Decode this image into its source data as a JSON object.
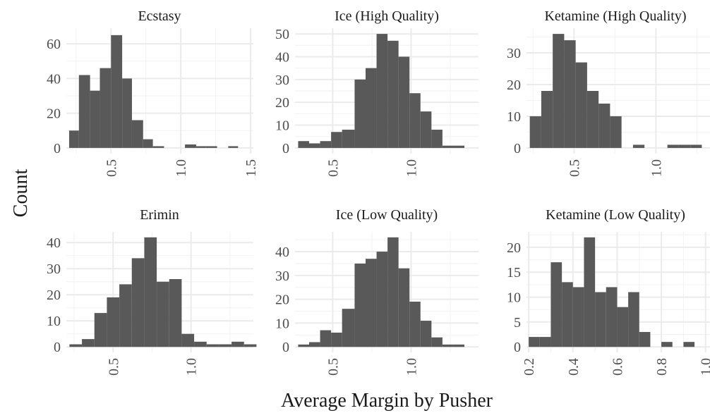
{
  "figure": {
    "xlabel": "Average Margin by Pusher",
    "ylabel": "Count"
  },
  "colors": {
    "bar": "#595959",
    "grid_major": "#ebebeb",
    "grid_minor": "#f2f2f2",
    "background": "#ffffff"
  },
  "chart_data": [
    {
      "type": "bar",
      "title": "Ecstasy",
      "xlim": [
        0.18,
        1.52
      ],
      "ylim": [
        -3.3,
        69
      ],
      "xticks": [
        0.5,
        1.0,
        1.5
      ],
      "xtick_labels": [
        "0.5",
        "1.0",
        "1.5"
      ],
      "yticks": [
        0,
        20,
        40,
        60
      ],
      "ytick_labels": [
        "0",
        "20",
        "40",
        "60"
      ],
      "bins": [
        {
          "x0": 0.2,
          "x1": 0.27,
          "count": 10
        },
        {
          "x0": 0.27,
          "x1": 0.35,
          "count": 42
        },
        {
          "x0": 0.35,
          "x1": 0.42,
          "count": 33
        },
        {
          "x0": 0.42,
          "x1": 0.5,
          "count": 46
        },
        {
          "x0": 0.5,
          "x1": 0.58,
          "count": 65
        },
        {
          "x0": 0.58,
          "x1": 0.65,
          "count": 40
        },
        {
          "x0": 0.65,
          "x1": 0.73,
          "count": 16
        },
        {
          "x0": 0.73,
          "x1": 0.8,
          "count": 5
        },
        {
          "x0": 0.8,
          "x1": 0.88,
          "count": 1
        },
        {
          "x0": 1.03,
          "x1": 1.11,
          "count": 2
        },
        {
          "x0": 1.11,
          "x1": 1.18,
          "count": 1
        },
        {
          "x0": 1.18,
          "x1": 1.26,
          "count": 1
        },
        {
          "x0": 1.34,
          "x1": 1.41,
          "count": 1
        }
      ]
    },
    {
      "type": "bar",
      "title": "Ice (High Quality)",
      "xlim": [
        0.26,
        1.43
      ],
      "ylim": [
        -2.5,
        52.5
      ],
      "xticks": [
        0.5,
        1.0
      ],
      "xtick_labels": [
        "0.5",
        "1.0"
      ],
      "yticks": [
        0,
        10,
        20,
        30,
        40,
        50
      ],
      "ytick_labels": [
        "0",
        "10",
        "20",
        "30",
        "40",
        "50"
      ],
      "bins": [
        {
          "x0": 0.28,
          "x1": 0.35,
          "count": 3
        },
        {
          "x0": 0.35,
          "x1": 0.42,
          "count": 2
        },
        {
          "x0": 0.42,
          "x1": 0.49,
          "count": 3
        },
        {
          "x0": 0.49,
          "x1": 0.56,
          "count": 7
        },
        {
          "x0": 0.56,
          "x1": 0.64,
          "count": 8
        },
        {
          "x0": 0.64,
          "x1": 0.71,
          "count": 30
        },
        {
          "x0": 0.71,
          "x1": 0.78,
          "count": 35
        },
        {
          "x0": 0.78,
          "x1": 0.85,
          "count": 50
        },
        {
          "x0": 0.85,
          "x1": 0.92,
          "count": 47
        },
        {
          "x0": 0.92,
          "x1": 0.99,
          "count": 40
        },
        {
          "x0": 0.99,
          "x1": 1.06,
          "count": 24
        },
        {
          "x0": 1.06,
          "x1": 1.13,
          "count": 16
        },
        {
          "x0": 1.13,
          "x1": 1.2,
          "count": 8
        },
        {
          "x0": 1.2,
          "x1": 1.27,
          "count": 1
        },
        {
          "x0": 1.27,
          "x1": 1.34,
          "count": 1
        }
      ]
    },
    {
      "type": "bar",
      "title": "Ketamine (High Quality)",
      "xlim": [
        0.21,
        1.33
      ],
      "ylim": [
        -1.8,
        37.8
      ],
      "xticks": [
        0.5,
        1.0
      ],
      "xtick_labels": [
        "0.5",
        "1.0"
      ],
      "yticks": [
        0,
        10,
        20,
        30
      ],
      "ytick_labels": [
        "0",
        "10",
        "20",
        "30"
      ],
      "bins": [
        {
          "x0": 0.23,
          "x1": 0.3,
          "count": 10
        },
        {
          "x0": 0.3,
          "x1": 0.37,
          "count": 18
        },
        {
          "x0": 0.37,
          "x1": 0.44,
          "count": 36
        },
        {
          "x0": 0.44,
          "x1": 0.51,
          "count": 34
        },
        {
          "x0": 0.51,
          "x1": 0.58,
          "count": 27
        },
        {
          "x0": 0.58,
          "x1": 0.65,
          "count": 18
        },
        {
          "x0": 0.65,
          "x1": 0.72,
          "count": 14
        },
        {
          "x0": 0.72,
          "x1": 0.79,
          "count": 10
        },
        {
          "x0": 0.86,
          "x1": 0.93,
          "count": 1
        },
        {
          "x0": 1.07,
          "x1": 1.14,
          "count": 1
        },
        {
          "x0": 1.14,
          "x1": 1.21,
          "count": 1
        },
        {
          "x0": 1.21,
          "x1": 1.28,
          "count": 1
        }
      ]
    },
    {
      "type": "bar",
      "title": "Erimin",
      "xlim": [
        0.2,
        1.4
      ],
      "ylim": [
        -2.1,
        44.1
      ],
      "xticks": [
        0.5,
        1.0
      ],
      "xtick_labels": [
        "0.5",
        "1.0"
      ],
      "yticks": [
        0,
        10,
        20,
        30,
        40
      ],
      "ytick_labels": [
        "0",
        "10",
        "20",
        "30",
        "40"
      ],
      "bins": [
        {
          "x0": 0.22,
          "x1": 0.3,
          "count": 1
        },
        {
          "x0": 0.3,
          "x1": 0.38,
          "count": 3
        },
        {
          "x0": 0.38,
          "x1": 0.46,
          "count": 13
        },
        {
          "x0": 0.46,
          "x1": 0.54,
          "count": 19
        },
        {
          "x0": 0.54,
          "x1": 0.62,
          "count": 24
        },
        {
          "x0": 0.62,
          "x1": 0.7,
          "count": 34
        },
        {
          "x0": 0.7,
          "x1": 0.78,
          "count": 42
        },
        {
          "x0": 0.78,
          "x1": 0.86,
          "count": 25
        },
        {
          "x0": 0.86,
          "x1": 0.94,
          "count": 26
        },
        {
          "x0": 0.94,
          "x1": 1.02,
          "count": 5
        },
        {
          "x0": 1.02,
          "x1": 1.1,
          "count": 2
        },
        {
          "x0": 1.1,
          "x1": 1.18,
          "count": 1
        },
        {
          "x0": 1.18,
          "x1": 1.26,
          "count": 1
        },
        {
          "x0": 1.26,
          "x1": 1.34,
          "count": 2
        },
        {
          "x0": 1.34,
          "x1": 1.42,
          "count": 1
        }
      ]
    },
    {
      "type": "bar",
      "title": "Ice (Low Quality)",
      "xlim": [
        0.26,
        1.43
      ],
      "ylim": [
        -2.3,
        48.3
      ],
      "xticks": [
        0.5,
        1.0
      ],
      "xtick_labels": [
        "0.5",
        "1.0"
      ],
      "yticks": [
        0,
        10,
        20,
        30,
        40
      ],
      "ytick_labels": [
        "0",
        "10",
        "20",
        "30",
        "40"
      ],
      "bins": [
        {
          "x0": 0.28,
          "x1": 0.35,
          "count": 1
        },
        {
          "x0": 0.35,
          "x1": 0.42,
          "count": 2
        },
        {
          "x0": 0.42,
          "x1": 0.49,
          "count": 7
        },
        {
          "x0": 0.49,
          "x1": 0.56,
          "count": 6
        },
        {
          "x0": 0.56,
          "x1": 0.64,
          "count": 16
        },
        {
          "x0": 0.64,
          "x1": 0.71,
          "count": 35
        },
        {
          "x0": 0.71,
          "x1": 0.78,
          "count": 37
        },
        {
          "x0": 0.78,
          "x1": 0.85,
          "count": 40
        },
        {
          "x0": 0.85,
          "x1": 0.92,
          "count": 46
        },
        {
          "x0": 0.92,
          "x1": 0.99,
          "count": 33
        },
        {
          "x0": 0.99,
          "x1": 1.06,
          "count": 19
        },
        {
          "x0": 1.06,
          "x1": 1.13,
          "count": 11
        },
        {
          "x0": 1.13,
          "x1": 1.2,
          "count": 4
        },
        {
          "x0": 1.2,
          "x1": 1.27,
          "count": 1
        },
        {
          "x0": 1.27,
          "x1": 1.34,
          "count": 1
        }
      ]
    },
    {
      "type": "bar",
      "title": "Ketamine (Low Quality)",
      "xlim": [
        0.19,
        1.02
      ],
      "ylim": [
        -1.1,
        23.1
      ],
      "xticks": [
        0.2,
        0.4,
        0.6,
        0.8,
        1.0
      ],
      "xtick_labels": [
        "0.2",
        "0.4",
        "0.6",
        "0.8",
        "1.0"
      ],
      "yticks": [
        0,
        5,
        10,
        15,
        20
      ],
      "ytick_labels": [
        "0",
        "5",
        "10",
        "15",
        "20"
      ],
      "bins": [
        {
          "x0": 0.2,
          "x1": 0.25,
          "count": 2
        },
        {
          "x0": 0.25,
          "x1": 0.3,
          "count": 2
        },
        {
          "x0": 0.3,
          "x1": 0.35,
          "count": 17
        },
        {
          "x0": 0.35,
          "x1": 0.4,
          "count": 13
        },
        {
          "x0": 0.4,
          "x1": 0.45,
          "count": 12
        },
        {
          "x0": 0.45,
          "x1": 0.5,
          "count": 22
        },
        {
          "x0": 0.5,
          "x1": 0.55,
          "count": 11
        },
        {
          "x0": 0.55,
          "x1": 0.6,
          "count": 12
        },
        {
          "x0": 0.6,
          "x1": 0.65,
          "count": 8
        },
        {
          "x0": 0.65,
          "x1": 0.7,
          "count": 11
        },
        {
          "x0": 0.7,
          "x1": 0.75,
          "count": 3
        },
        {
          "x0": 0.8,
          "x1": 0.85,
          "count": 1
        },
        {
          "x0": 0.9,
          "x1": 0.95,
          "count": 1
        }
      ]
    }
  ]
}
